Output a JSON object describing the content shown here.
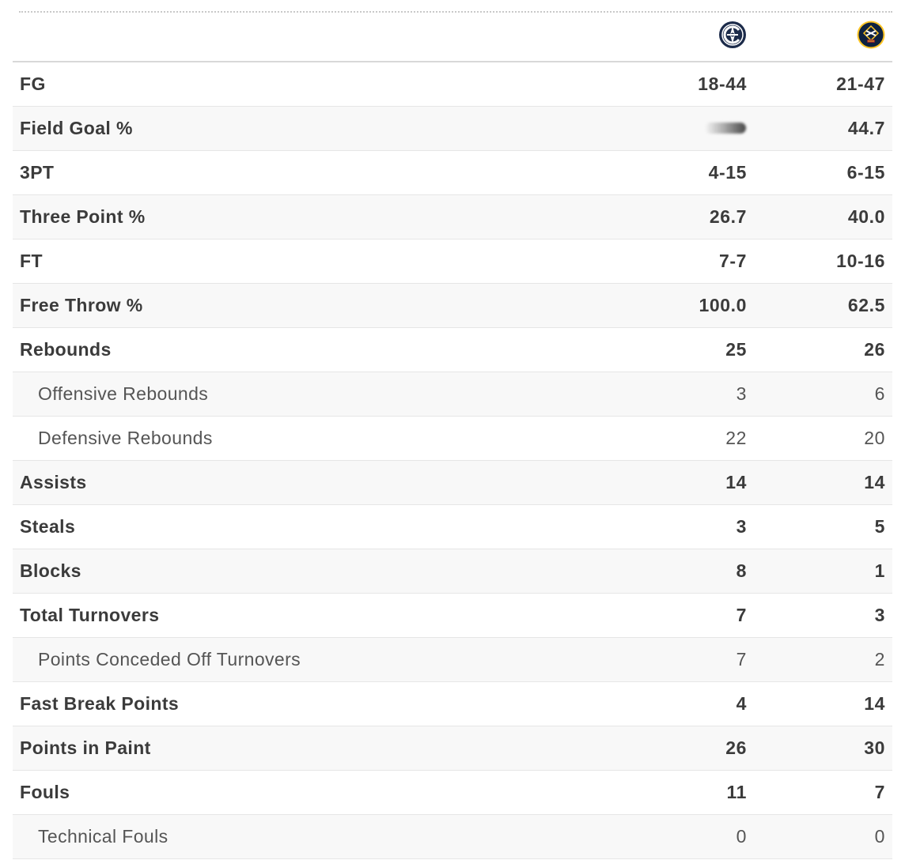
{
  "teams": {
    "home": {
      "icon": "team-logo-navy-compass-icon",
      "color": "#1c2b4a"
    },
    "away": {
      "icon": "team-logo-pickaxe-icon",
      "color": "#0e2240",
      "accent": "#fec524"
    }
  },
  "stats": [
    {
      "label": "FG",
      "home": "18-44",
      "away": "21-47",
      "sub": false
    },
    {
      "label": "Field Goal %",
      "home": "",
      "away": "44.7",
      "sub": false,
      "home_obscured": true
    },
    {
      "label": "3PT",
      "home": "4-15",
      "away": "6-15",
      "sub": false
    },
    {
      "label": "Three Point %",
      "home": "26.7",
      "away": "40.0",
      "sub": false
    },
    {
      "label": "FT",
      "home": "7-7",
      "away": "10-16",
      "sub": false
    },
    {
      "label": "Free Throw %",
      "home": "100.0",
      "away": "62.5",
      "sub": false
    },
    {
      "label": "Rebounds",
      "home": "25",
      "away": "26",
      "sub": false
    },
    {
      "label": "Offensive Rebounds",
      "home": "3",
      "away": "6",
      "sub": true
    },
    {
      "label": "Defensive Rebounds",
      "home": "22",
      "away": "20",
      "sub": true
    },
    {
      "label": "Assists",
      "home": "14",
      "away": "14",
      "sub": false
    },
    {
      "label": "Steals",
      "home": "3",
      "away": "5",
      "sub": false
    },
    {
      "label": "Blocks",
      "home": "8",
      "away": "1",
      "sub": false
    },
    {
      "label": "Total Turnovers",
      "home": "7",
      "away": "3",
      "sub": false
    },
    {
      "label": "Points Conceded Off Turnovers",
      "home": "7",
      "away": "2",
      "sub": true
    },
    {
      "label": "Fast Break Points",
      "home": "4",
      "away": "14",
      "sub": false
    },
    {
      "label": "Points in Paint",
      "home": "26",
      "away": "30",
      "sub": false
    },
    {
      "label": "Fouls",
      "home": "11",
      "away": "7",
      "sub": false
    },
    {
      "label": "Technical Fouls",
      "home": "0",
      "away": "0",
      "sub": true
    }
  ]
}
